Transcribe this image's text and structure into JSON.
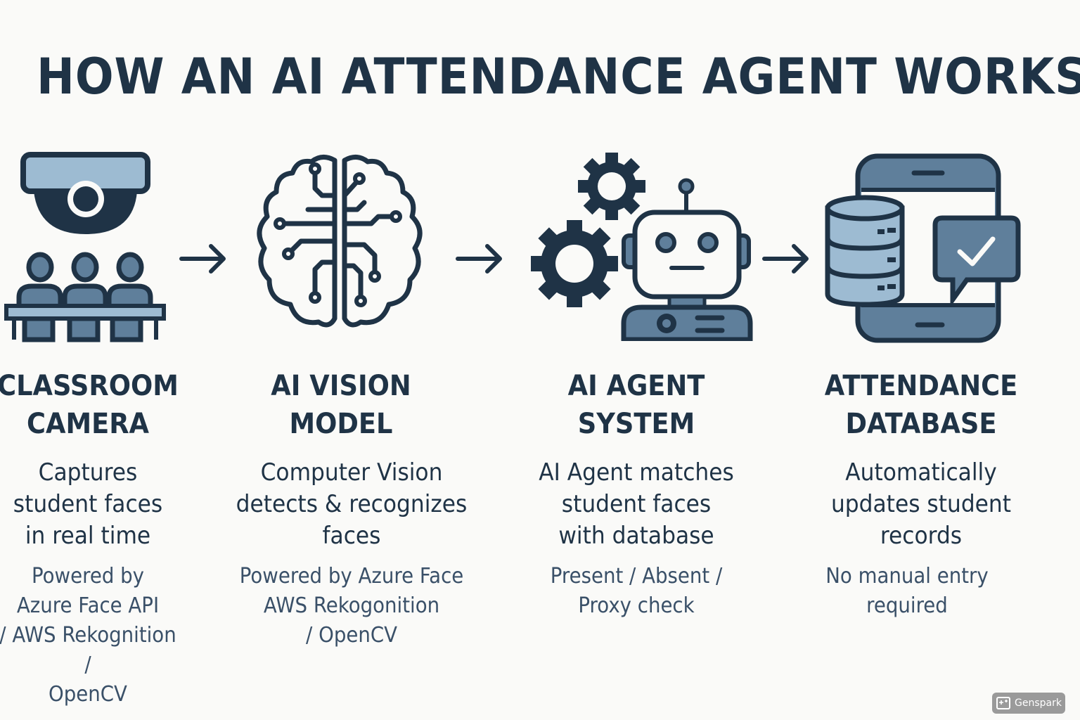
{
  "title": "HOW AN AI ATTENDANCE AGENT WORKS",
  "colors": {
    "dark": "#1f3346",
    "mid": "#5f7f9b",
    "light": "#9dbbd2",
    "background": "#fafaf8"
  },
  "steps": [
    {
      "icon": "classroom-camera-icon",
      "heading": [
        "CLASSROOM",
        "CAMERA"
      ],
      "description": [
        "Captures",
        "student faces",
        "in real time"
      ],
      "note": [
        "Powered by",
        "Azure Face API",
        "/ AWS Rekognition /",
        "OpenCV"
      ]
    },
    {
      "icon": "brain-circuit-icon",
      "heading": [
        "AI VISION",
        "MODEL"
      ],
      "description": [
        "Computer Vision",
        "detects & recognizes",
        "faces"
      ],
      "note": [
        "Powered by Azure Face",
        "AWS Rekogonition",
        "/ OpenCV"
      ]
    },
    {
      "icon": "robot-gears-icon",
      "heading": [
        "AI AGENT",
        "SYSTEM"
      ],
      "description": [
        "AI Agent matches",
        "student faces",
        "with database"
      ],
      "note": [
        "Present / Absent /",
        "Proxy check"
      ]
    },
    {
      "icon": "database-phone-check-icon",
      "heading": [
        "ATTENDANCE",
        "DATABASE"
      ],
      "description": [
        "Automatically",
        "updates student",
        "records"
      ],
      "note": [
        "No manual entry",
        "required"
      ]
    }
  ],
  "watermark": "Genspark"
}
